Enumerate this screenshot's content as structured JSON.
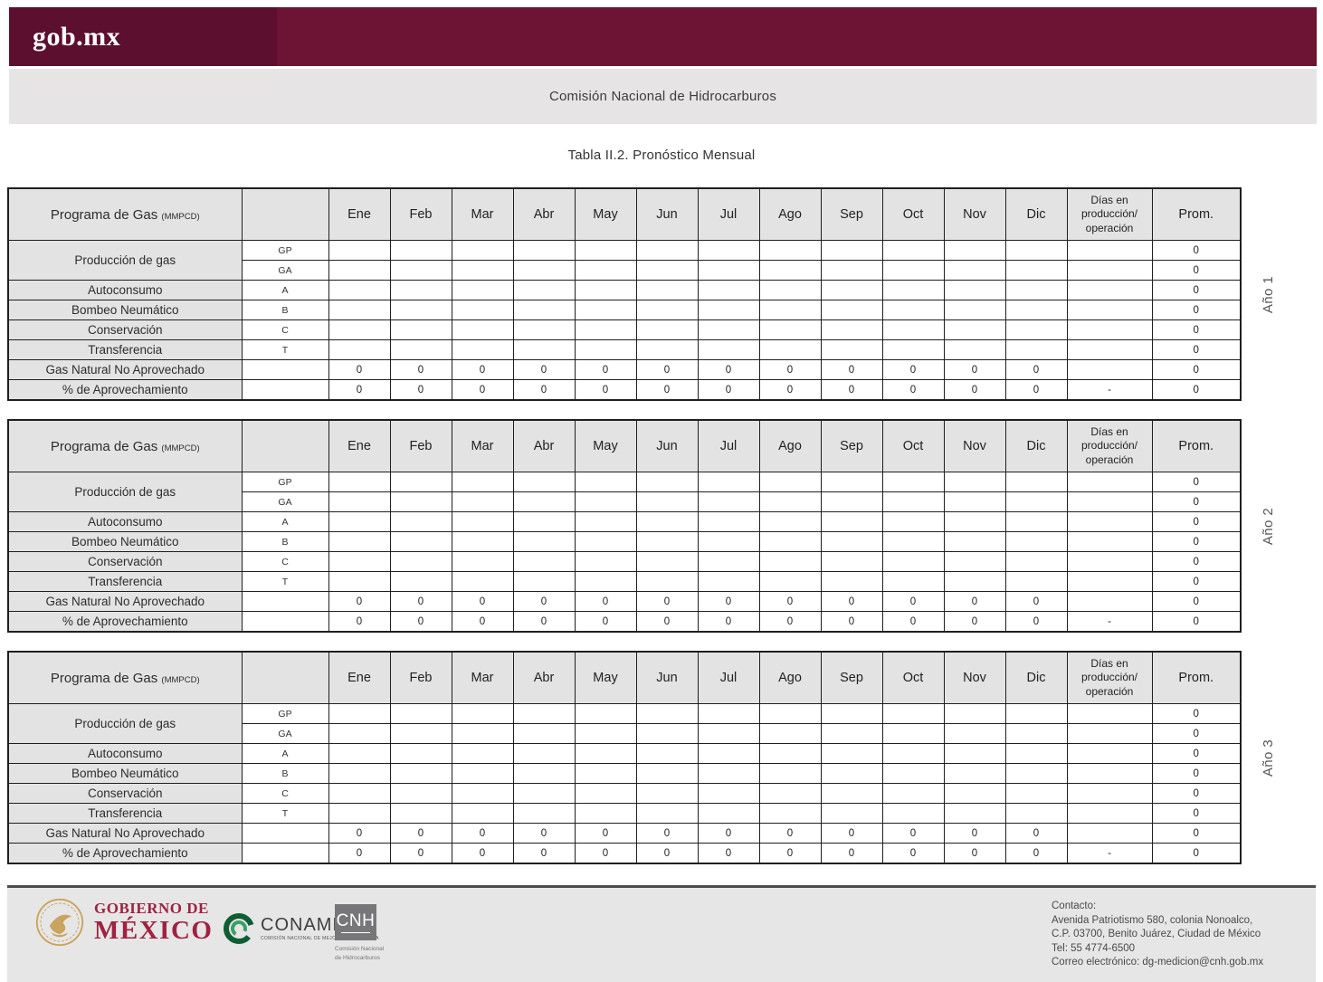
{
  "header": {
    "logo_text": "gob.mx",
    "site_title": "Comisión Nacional de Hidrocarburos"
  },
  "page": {
    "title": "Tabla II.2. Pronóstico Mensual"
  },
  "gas_table": {
    "title": "Programa de Gas",
    "unit": "(MMPCD)",
    "months": [
      "Ene",
      "Feb",
      "Mar",
      "Abr",
      "May",
      "Jun",
      "Jul",
      "Ago",
      "Sep",
      "Oct",
      "Nov",
      "Dic"
    ],
    "days_header": "Días en\nproducción/\noperación",
    "prom_header": "Prom.",
    "rows": [
      {
        "label": "Producción de gas",
        "rowspan": 2,
        "code": "GP",
        "month_values": [
          "",
          "",
          "",
          "",
          "",
          "",
          "",
          "",
          "",
          "",
          "",
          ""
        ],
        "days": "",
        "prom": "0"
      },
      {
        "code": "GA",
        "month_values": [
          "",
          "",
          "",
          "",
          "",
          "",
          "",
          "",
          "",
          "",
          "",
          ""
        ],
        "days": "",
        "prom": "0"
      },
      {
        "label": "Autoconsumo",
        "code": "A",
        "month_values": [
          "",
          "",
          "",
          "",
          "",
          "",
          "",
          "",
          "",
          "",
          "",
          ""
        ],
        "days": "",
        "prom": "0"
      },
      {
        "label": "Bombeo Neumático",
        "code": "B",
        "month_values": [
          "",
          "",
          "",
          "",
          "",
          "",
          "",
          "",
          "",
          "",
          "",
          ""
        ],
        "days": "",
        "prom": "0"
      },
      {
        "label": "Conservación",
        "code": "C",
        "month_values": [
          "",
          "",
          "",
          "",
          "",
          "",
          "",
          "",
          "",
          "",
          "",
          ""
        ],
        "days": "",
        "prom": "0"
      },
      {
        "label": "Transferencia",
        "code": "T",
        "month_values": [
          "",
          "",
          "",
          "",
          "",
          "",
          "",
          "",
          "",
          "",
          "",
          ""
        ],
        "days": "",
        "prom": "0"
      },
      {
        "label": "Gas Natural No Aprovechado",
        "code": "",
        "month_values": [
          "0",
          "0",
          "0",
          "0",
          "0",
          "0",
          "0",
          "0",
          "0",
          "0",
          "0",
          "0"
        ],
        "days": "",
        "prom": "0"
      },
      {
        "label": "% de Aprovechamiento",
        "code": "",
        "month_values": [
          "0",
          "0",
          "0",
          "0",
          "0",
          "0",
          "0",
          "0",
          "0",
          "0",
          "0",
          "0"
        ],
        "days": "-",
        "prom": "0"
      }
    ]
  },
  "year_tables": [
    {
      "year_label": "Año 1"
    },
    {
      "year_label": "Año 2"
    },
    {
      "year_label": "Año 3"
    }
  ],
  "footer": {
    "gobmx": {
      "line1": "GOBIERNO DE",
      "line2": "MÉXICO"
    },
    "conamer": {
      "name": "CONAMER",
      "caption": "COMISIÓN NACIONAL DE MEJORA REGULATORIA"
    },
    "cnh": {
      "abbr": "CNH",
      "caption_line1": "Comisión Nacional",
      "caption_line2": "de Hidrocarburos"
    },
    "contact": {
      "heading": "Contacto:",
      "address_line1": "Avenida Patriotismo 580, colonia Nonoalco,",
      "address_line2": "C.P. 03700, Benito Juárez, Ciudad de México",
      "phone": "Tel: 55 4774-6500",
      "email": "Correo electrónico: dg-medicion@cnh.gob.mx"
    }
  },
  "colors": {
    "brand_maroon": "#6d1334",
    "brand_maroon_dark": "#5c0f2e",
    "table_header_gray": "#e4e3e3",
    "footer_gray": "#e7e6e6",
    "gob_red": "#9f2241",
    "emblem_gold": "#c9a35f",
    "conamer_green": "#0d5e33"
  }
}
